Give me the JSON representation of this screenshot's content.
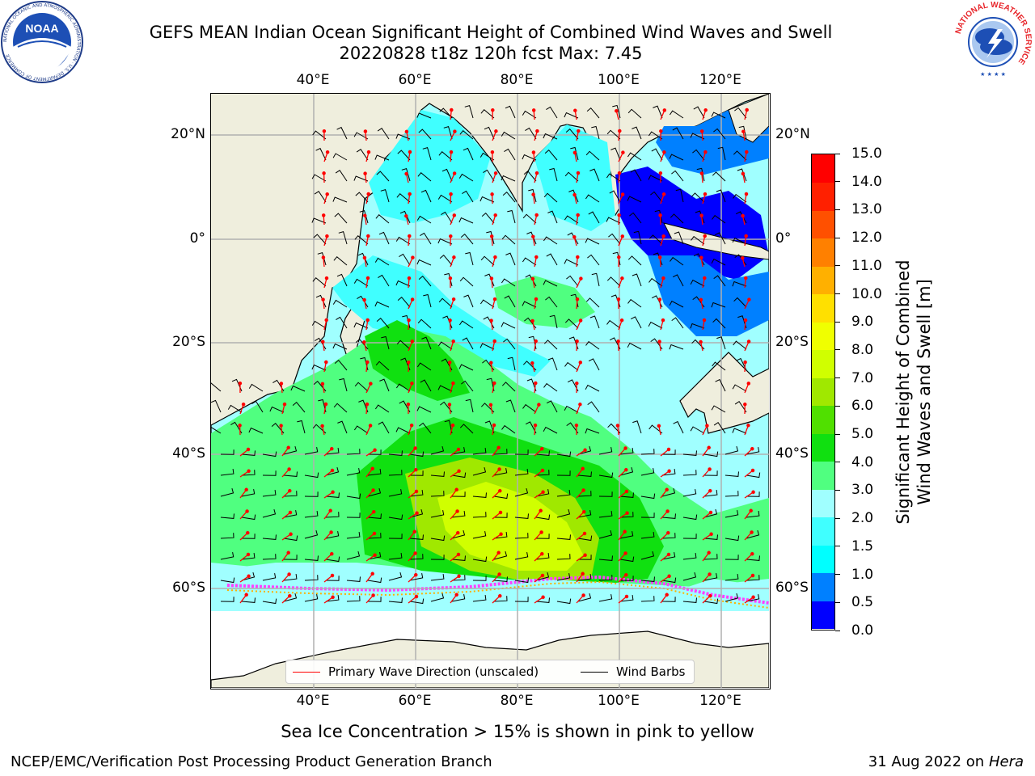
{
  "title": {
    "line1": "GEFS MEAN Indian Ocean Significant Height of Combined Wind Waves and Swell",
    "line2": "20220828 t18z 120h fcst   Max: 7.45"
  },
  "axes": {
    "lon_ticks": [
      "40°E",
      "60°E",
      "80°E",
      "100°E",
      "120°E"
    ],
    "lat_ticks": [
      "20°N",
      "0°",
      "20°S",
      "40°S",
      "60°S"
    ],
    "lon_range": [
      20,
      130
    ],
    "lat_range": [
      -80,
      28
    ],
    "grid": true
  },
  "colorbar": {
    "label_line1": "Significant Height of Combined",
    "label_line2": "Wind Waves and Swell [m]",
    "ticks": [
      "0.0",
      "0.5",
      "1.0",
      "1.5",
      "2.0",
      "3.0",
      "4.0",
      "5.0",
      "6.0",
      "7.0",
      "8.0",
      "9.0",
      "10.0",
      "11.0",
      "12.0",
      "13.0",
      "14.0",
      "15.0"
    ],
    "colors": [
      "#0000ff",
      "#0080ff",
      "#00ffff",
      "#40ffff",
      "#a0ffff",
      "#50ff80",
      "#10e010",
      "#50e000",
      "#a0e800",
      "#d0ff00",
      "#f0ff00",
      "#ffe000",
      "#ffb000",
      "#ff8000",
      "#ff5000",
      "#ff2000",
      "#ff0000"
    ]
  },
  "legend": {
    "wave_label": "Primary Wave Direction (unscaled)",
    "wind_label": "Wind Barbs",
    "wave_color": "#ff0000",
    "wind_color": "#000000"
  },
  "note": "Sea Ice Concentration > 15% is shown in pink to yellow",
  "footer": {
    "left": "NCEP/EMC/Verification Post Processing Product Generation Branch",
    "date": "31 Aug 2022 on",
    "machine": "Hera"
  },
  "logos": {
    "noaa_text": "NOAA",
    "noaa_ring": "NATIONAL OCEANIC AND ATMOSPHERIC ADMINISTRATION · U.S. DEPARTMENT OF COMMERCE",
    "nws_ring": "NATIONAL WEATHER SERVICE"
  },
  "map_colors": {
    "land": "#efeedd",
    "ice_free_sea": "#ffffff",
    "wave_red": "#ff0000"
  }
}
